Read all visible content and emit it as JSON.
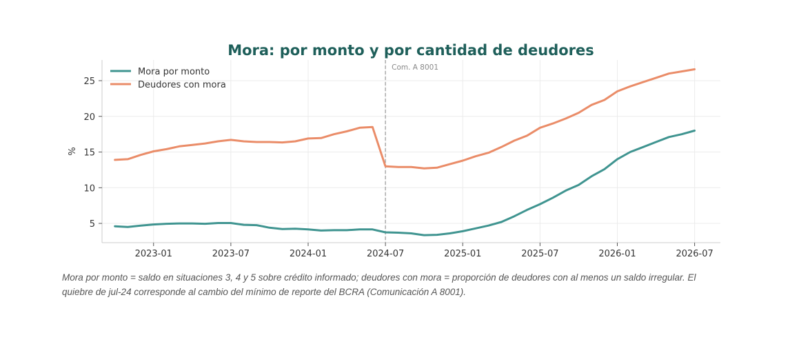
{
  "caption": "Mora por monto = saldo en situaciones 3, 4 y 5 sobre crédito informado; deudores con mora = proporción de deudores con al menos un saldo irregular. El quiebre de jul-24 corresponde al cambio del mínimo de reporte del BCRA (Comunicación A 8001).",
  "chart_data": {
    "type": "line",
    "title": "Mora: por monto y por cantidad de deudores",
    "xlabel": "",
    "ylabel": "%",
    "xlim": [
      "2022-09",
      "2026-09"
    ],
    "ylim": [
      2.3,
      27.9
    ],
    "x_ticks": [
      "2023-01",
      "2023-07",
      "2024-01",
      "2024-07",
      "2025-01",
      "2025-07",
      "2026-01",
      "2026-07"
    ],
    "y_ticks": [
      5,
      10,
      15,
      20,
      25
    ],
    "grid": true,
    "legend_position": "top-left",
    "x": [
      "2022-10",
      "2022-11",
      "2022-12",
      "2023-01",
      "2023-02",
      "2023-03",
      "2023-04",
      "2023-05",
      "2023-06",
      "2023-07",
      "2023-08",
      "2023-09",
      "2023-10",
      "2023-11",
      "2023-12",
      "2024-01",
      "2024-02",
      "2024-03",
      "2024-04",
      "2024-05",
      "2024-06",
      "2024-07",
      "2024-08",
      "2024-09",
      "2024-10",
      "2024-11",
      "2024-12",
      "2025-01",
      "2025-02",
      "2025-03",
      "2025-04",
      "2025-05",
      "2025-06",
      "2025-07",
      "2025-08",
      "2025-09",
      "2025-10",
      "2025-11",
      "2025-12",
      "2026-01",
      "2026-02",
      "2026-03",
      "2026-04",
      "2026-05",
      "2026-06",
      "2026-07"
    ],
    "series": [
      {
        "name": "Mora por monto",
        "color": "#3f9490",
        "values": [
          4.6,
          4.5,
          4.7,
          4.85,
          4.95,
          5.0,
          5.0,
          4.95,
          5.05,
          5.05,
          4.8,
          4.75,
          4.4,
          4.2,
          4.25,
          4.15,
          4.0,
          4.05,
          4.05,
          4.15,
          4.15,
          3.75,
          3.7,
          3.6,
          3.35,
          3.4,
          3.6,
          3.9,
          4.3,
          4.7,
          5.2,
          6.0,
          6.9,
          7.7,
          8.6,
          9.6,
          10.4,
          11.6,
          12.6,
          14.0,
          15.0,
          15.7,
          16.4,
          17.1,
          17.5,
          18.0
        ]
      },
      {
        "name": "Deudores con mora",
        "color": "#ea8c68",
        "values": [
          13.9,
          14.0,
          14.6,
          15.1,
          15.4,
          15.8,
          16.0,
          16.2,
          16.5,
          16.7,
          16.5,
          16.4,
          16.4,
          16.35,
          16.5,
          16.9,
          16.95,
          17.5,
          17.9,
          18.4,
          18.5,
          13.0,
          12.9,
          12.9,
          12.7,
          12.8,
          13.3,
          13.8,
          14.4,
          14.9,
          15.7,
          16.6,
          17.3,
          18.4,
          19.0,
          19.7,
          20.5,
          21.6,
          22.3,
          23.5,
          24.2,
          24.8,
          25.4,
          26.0,
          26.3,
          26.6
        ]
      }
    ],
    "annotations": [
      {
        "x": "2024-07",
        "type": "vline",
        "label": "Com. A 8001"
      }
    ]
  }
}
